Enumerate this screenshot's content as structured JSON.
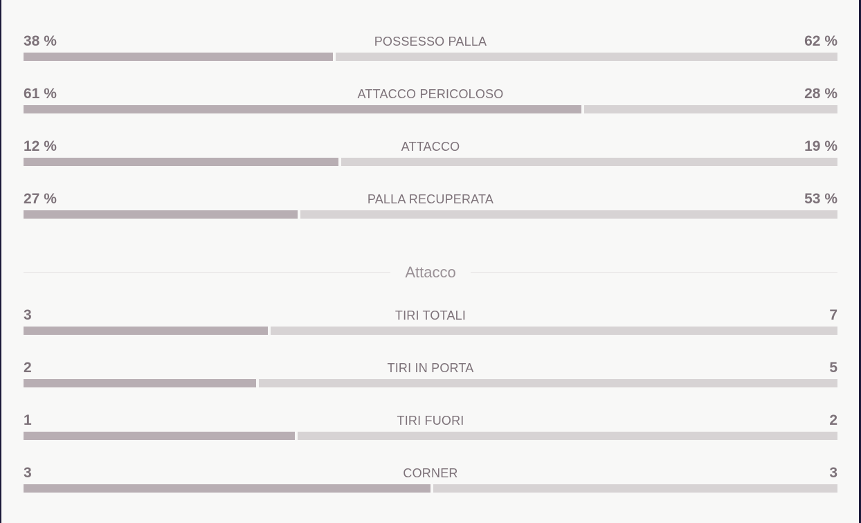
{
  "stats_top": [
    {
      "label": "POSSESSO PALLA",
      "home": "38 %",
      "away": "62 %",
      "home_share": 0.38
    },
    {
      "label": "ATTACCO PERICOLOSO",
      "home": "61 %",
      "away": "28 %",
      "home_share": 0.685
    },
    {
      "label": "ATTACCO",
      "home": "12 %",
      "away": "19 %",
      "home_share": 0.387
    },
    {
      "label": "PALLA RECUPERATA",
      "home": "27 %",
      "away": "53 %",
      "home_share": 0.337
    }
  ],
  "section": {
    "title": "Attacco"
  },
  "stats_attack": [
    {
      "label": "TIRI TOTALI",
      "home": "3",
      "away": "7",
      "home_share": 0.3
    },
    {
      "label": "TIRI IN PORTA",
      "home": "2",
      "away": "5",
      "home_share": 0.286
    },
    {
      "label": "TIRI FUORI",
      "home": "1",
      "away": "2",
      "home_share": 0.333
    },
    {
      "label": "CORNER",
      "home": "3",
      "away": "3",
      "home_share": 0.5
    }
  ],
  "colors": {
    "home_bar": "#b8aeb3",
    "away_bar": "#d7d3d4",
    "text": "#7d7279",
    "background": "#f8f8f7"
  }
}
